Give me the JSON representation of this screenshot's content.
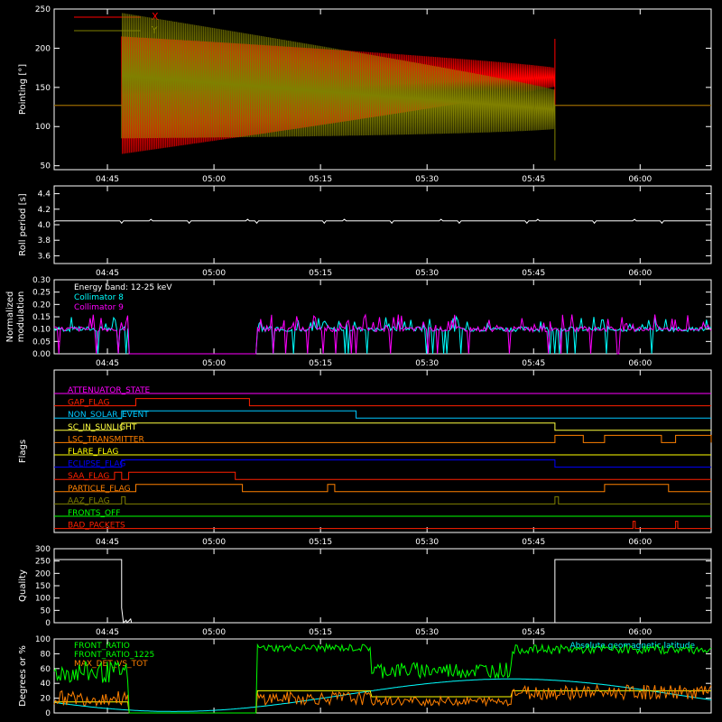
{
  "chart_data": [
    {
      "type": "line",
      "ylabel": "Pointing [°]",
      "ylim": [
        45,
        250
      ],
      "yticks": [
        50,
        100,
        150,
        200,
        250
      ],
      "xticks": [
        "04:45",
        "05:00",
        "05:15",
        "05:30",
        "05:45",
        "06:00"
      ],
      "legend_position": "top-left",
      "series": [
        {
          "name": "X",
          "color": "#ff0000",
          "baseline": 127,
          "osc_start": "04:47",
          "osc_end": "05:48",
          "center_start": 140,
          "center_end": 163,
          "amp_start": 75,
          "amp_end": 12,
          "spike": 212
        },
        {
          "name": "Y",
          "color": "#808000",
          "baseline": 127,
          "osc_start": "04:47",
          "osc_end": "05:48",
          "center_start": 165,
          "center_end": 122,
          "amp_start": 80,
          "amp_end": 25,
          "spike": 57
        }
      ]
    },
    {
      "type": "line",
      "ylabel": "Roll period [s]",
      "ylim": [
        3.5,
        4.5
      ],
      "yticks": [
        "3.6",
        "3.8",
        "4.0",
        "4.2",
        "4.4"
      ],
      "xticks": [
        "04:45",
        "05:00",
        "05:15",
        "05:30",
        "05:45",
        "06:00"
      ],
      "series": [
        {
          "name": "",
          "color": "#ffffff",
          "value": 4.05
        }
      ]
    },
    {
      "type": "line",
      "ylabel": "Normalized modulation",
      "ylim": [
        0,
        0.3
      ],
      "yticks": [
        "0.00",
        "0.05",
        "0.10",
        "0.15",
        "0.20",
        "0.25",
        "0.30"
      ],
      "xticks": [
        "04:45",
        "05:00",
        "05:15",
        "05:30",
        "05:45",
        "06:00"
      ],
      "legend_position": "top-left",
      "legend": [
        "Energy band: 12-25 keV",
        "Collimator 8",
        "Collimator 9"
      ],
      "gap": {
        "start": "04:48",
        "end": "05:06"
      },
      "series": [
        {
          "name": "Collimator 8",
          "color": "#00ffff",
          "level": 0.1,
          "spread": 0.05
        },
        {
          "name": "Collimator 9",
          "color": "#ff00ff",
          "level": 0.1,
          "spread": 0.06
        }
      ]
    },
    {
      "type": "line",
      "ylabel": "Flags",
      "xticks": [
        "04:45",
        "05:00",
        "05:15",
        "05:30",
        "05:45",
        "06:00"
      ],
      "flags": [
        {
          "name": "ATTENUATOR_STATE",
          "color": "#ff00ff",
          "on": []
        },
        {
          "name": "GAP_FLAG",
          "color": "#ff2000",
          "on": [
            [
              "04:49",
              "05:05"
            ]
          ]
        },
        {
          "name": "NON_SOLAR_EVENT",
          "color": "#00c8ff",
          "on": [
            [
              "04:47",
              "05:20"
            ]
          ]
        },
        {
          "name": "SC_IN_SUNLIGHT",
          "color": "#ffff40",
          "on": [
            [
              "04:47",
              "05:48"
            ]
          ]
        },
        {
          "name": "LSC_TRANSMITTER",
          "color": "#ff8000",
          "on": [
            [
              "05:48",
              "05:52"
            ],
            [
              "05:55",
              "06:03"
            ],
            [
              "06:05",
              "06:10"
            ]
          ]
        },
        {
          "name": "FLARE_FLAG",
          "color": "#ffff00",
          "on": []
        },
        {
          "name": "ECLIPSE_FLAG",
          "color": "#0000ff",
          "on": [
            [
              "04:47",
              "05:48"
            ]
          ]
        },
        {
          "name": "SAA_FLAG",
          "color": "#ff2000",
          "on": [
            [
              "04:46",
              "04:47"
            ],
            [
              "04:48",
              "05:03"
            ]
          ]
        },
        {
          "name": "PARTICLE_FLAG",
          "color": "#ff8000",
          "on": [
            [
              "04:49",
              "05:04"
            ],
            [
              "05:16",
              "05:17"
            ],
            [
              "05:55",
              "06:04"
            ]
          ]
        },
        {
          "name": "AAZ_FLAG",
          "color": "#808000",
          "on": [
            [
              "04:47",
              "04:47.5"
            ],
            [
              "05:48",
              "05:48.5"
            ]
          ]
        },
        {
          "name": "FRONTS_OFF",
          "color": "#00ff00",
          "on": []
        },
        {
          "name": "BAD_PACKETS",
          "color": "#ff2000",
          "on": [
            [
              "05:59",
              "05:59.3"
            ],
            [
              "06:05",
              "06:05.3"
            ]
          ]
        }
      ]
    },
    {
      "type": "line",
      "ylabel": "Quality",
      "ylim": [
        0,
        300
      ],
      "yticks": [
        0,
        50,
        100,
        150,
        200,
        250,
        300
      ],
      "xticks": [
        "04:45",
        "05:00",
        "05:15",
        "05:30",
        "05:45",
        "06:00"
      ],
      "series": [
        {
          "name": "",
          "color": "#ffffff",
          "high": 256,
          "low_start": "04:47",
          "low_end": "05:48"
        }
      ]
    },
    {
      "type": "line",
      "ylabel": "Degrees or %",
      "ylim": [
        0,
        100
      ],
      "yticks": [
        0,
        20,
        40,
        60,
        80,
        100
      ],
      "legend_position": "top-left",
      "series": [
        {
          "name": "FRONT_RATIO",
          "color": "#00ff00"
        },
        {
          "name": "FRONT_RATIO_1225",
          "color": "#00ff00"
        },
        {
          "name": "MAX_DET_VS_TOT",
          "color": "#ff8000"
        },
        {
          "name": "Absolute geomagnetic latitude",
          "color": "#00ffff"
        }
      ]
    }
  ]
}
